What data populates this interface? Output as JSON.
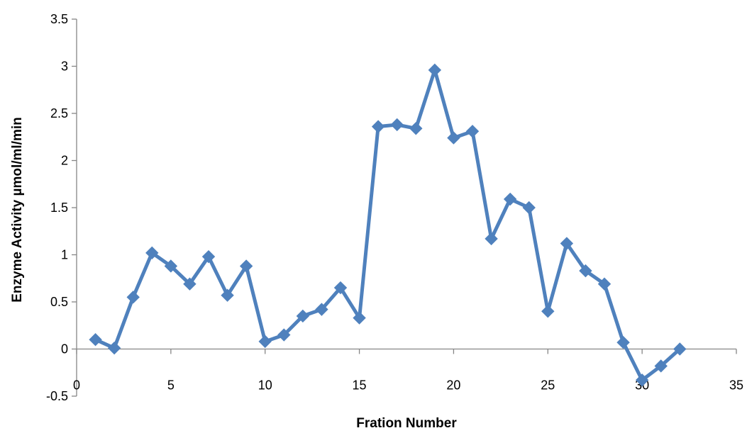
{
  "chart_data": {
    "type": "line",
    "title": "",
    "xlabel": "Fration Number",
    "ylabel": "Enzyme Activity µmol/ml/min",
    "xlim": [
      0,
      35
    ],
    "ylim": [
      -0.5,
      3.5
    ],
    "xticks": [
      0,
      5,
      10,
      15,
      20,
      25,
      30,
      35
    ],
    "yticks": [
      -0.5,
      0,
      0.5,
      1,
      1.5,
      2,
      2.5,
      3,
      3.5
    ],
    "xtick_labels": [
      "0",
      "5",
      "10",
      "15",
      "20",
      "25",
      "30",
      "35"
    ],
    "ytick_labels": [
      "-0.5",
      "0",
      "0.5",
      "1",
      "1.5",
      "2",
      "2.5",
      "3",
      "3.5"
    ],
    "grid": false,
    "legend": "none",
    "series": [
      {
        "color": "#4F81BD",
        "marker": "diamond",
        "x": [
          1,
          2,
          3,
          4,
          5,
          6,
          7,
          8,
          9,
          10,
          11,
          12,
          13,
          14,
          15,
          16,
          17,
          18,
          19,
          20,
          21,
          22,
          23,
          24,
          25,
          26,
          27,
          28,
          29,
          30,
          31,
          32
        ],
        "y": [
          0.1,
          0.01,
          0.55,
          1.02,
          0.88,
          0.69,
          0.98,
          0.57,
          0.88,
          0.08,
          0.15,
          0.35,
          0.42,
          0.65,
          0.33,
          2.36,
          2.38,
          2.34,
          2.96,
          2.24,
          2.31,
          1.17,
          1.59,
          1.5,
          0.4,
          1.12,
          0.83,
          0.69,
          0.07,
          -0.33,
          -0.18,
          0.0
        ]
      }
    ]
  }
}
